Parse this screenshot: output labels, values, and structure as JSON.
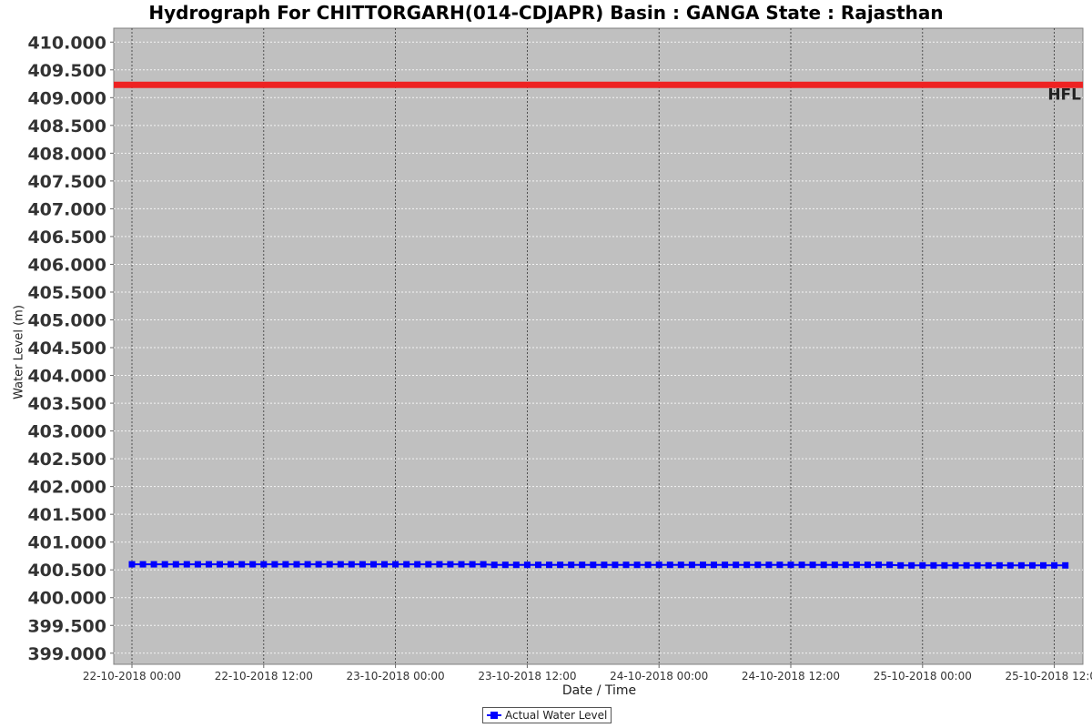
{
  "chart_data": {
    "type": "line",
    "title": "Hydrograph For CHITTORGARH(014-CDJAPR) Basin : GANGA State : Rajasthan",
    "xlabel": "Date / Time",
    "ylabel": "Water Level (m)",
    "ylim": [
      398.8,
      410.25
    ],
    "xlim": [
      "22-10-2018 00:00",
      "25-10-2018 12:00"
    ],
    "grid": true,
    "legend_position": "bottom-center",
    "y_ticks": [
      "410.000",
      "409.500",
      "409.000",
      "408.500",
      "408.000",
      "407.500",
      "407.000",
      "406.500",
      "406.000",
      "405.500",
      "405.000",
      "404.500",
      "404.000",
      "403.500",
      "403.000",
      "402.500",
      "402.000",
      "401.500",
      "401.000",
      "400.500",
      "400.000",
      "399.500",
      "399.000"
    ],
    "x_ticks": [
      "22-10-2018 00:00",
      "22-10-2018 12:00",
      "23-10-2018 00:00",
      "23-10-2018 12:00",
      "24-10-2018 00:00",
      "24-10-2018 12:00",
      "25-10-2018 00:00",
      "25-10-2018 12:00"
    ],
    "reference_line": {
      "label": "HFL",
      "value": 409.23,
      "color": "#ee2222"
    },
    "series": [
      {
        "name": "Actual Water Level",
        "color": "#0000ff",
        "marker": "square",
        "start": "22-10-2018 00:00",
        "interval_hours": 1,
        "values": [
          400.6,
          400.6,
          400.6,
          400.6,
          400.6,
          400.6,
          400.6,
          400.6,
          400.6,
          400.6,
          400.6,
          400.6,
          400.6,
          400.6,
          400.6,
          400.6,
          400.6,
          400.6,
          400.6,
          400.6,
          400.6,
          400.6,
          400.6,
          400.6,
          400.6,
          400.6,
          400.6,
          400.6,
          400.6,
          400.6,
          400.6,
          400.6,
          400.6,
          400.59,
          400.59,
          400.59,
          400.59,
          400.59,
          400.59,
          400.59,
          400.59,
          400.59,
          400.59,
          400.59,
          400.59,
          400.59,
          400.59,
          400.59,
          400.59,
          400.59,
          400.59,
          400.59,
          400.59,
          400.59,
          400.59,
          400.59,
          400.59,
          400.59,
          400.59,
          400.59,
          400.59,
          400.59,
          400.59,
          400.59,
          400.59,
          400.59,
          400.59,
          400.59,
          400.59,
          400.59,
          400.58,
          400.58,
          400.58,
          400.58,
          400.58,
          400.58,
          400.58,
          400.58,
          400.58,
          400.58,
          400.58,
          400.58,
          400.58,
          400.58,
          400.58,
          400.58
        ]
      }
    ]
  }
}
